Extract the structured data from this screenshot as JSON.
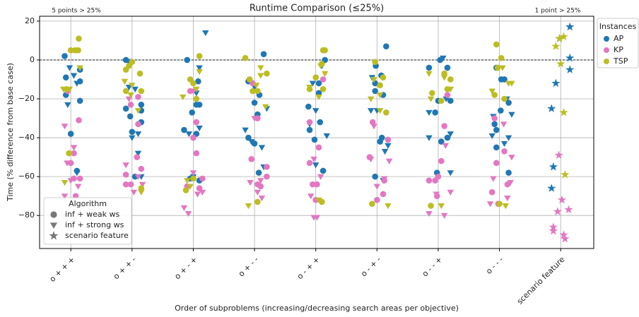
{
  "chart_data": {
    "type": "scatter",
    "title": "Runtime Comparison (≤25%)",
    "x_label": "Order of subproblems (increasing/decreasing search areas per objective)",
    "y_label": "Time (% difference from base case)",
    "annotations": [
      "5 points > 25%",
      "1 point > 25%"
    ],
    "reference_line": 0,
    "xlim": [
      -0.51,
      8.54
    ],
    "ylim": [
      -97,
      22.5
    ],
    "xticks": [
      {
        "value": 0,
        "label": "o + + +"
      },
      {
        "value": 1,
        "label": "o + + -"
      },
      {
        "value": 2,
        "label": "o + - +"
      },
      {
        "value": 3,
        "label": "o + - -"
      },
      {
        "value": 4,
        "label": "o - + +"
      },
      {
        "value": 5,
        "label": "o - + -"
      },
      {
        "value": 6,
        "label": "o - - +"
      },
      {
        "value": 7,
        "label": "o - - -"
      },
      {
        "value": 8,
        "label": "scenario feature"
      }
    ],
    "yticks": [
      {
        "value": -80,
        "label": "−80"
      },
      {
        "value": -60,
        "label": "−60"
      },
      {
        "value": -40,
        "label": "−40"
      },
      {
        "value": -20,
        "label": "−20"
      },
      0,
      20
    ],
    "grid": true,
    "legend": {
      "title": "Instances",
      "position": "outside right"
    },
    "algorithm_legend": {
      "title": "Algorithm",
      "position": "lower left",
      "color": "#777777",
      "entries": [
        {
          "name": "inf + weak ws",
          "marker": "circle"
        },
        {
          "name": "inf + strong ws",
          "marker": "triangle_down"
        },
        {
          "name": "scenario feature",
          "marker": "star"
        }
      ]
    },
    "series": [
      {
        "name": "AP",
        "color": "#1f77b4",
        "groups": [
          {
            "marker": "circle",
            "x": [
              -0.1,
              -0.08,
              -0.08,
              0.15,
              0.15,
              0.15,
              0.1,
              0.0,
              0.9,
              0.97,
              0.9,
              1.0,
              1.15,
              1.15,
              1.15,
              0.97,
              1.05,
              1.9,
              1.98,
              2.05,
              2.1,
              2.08,
              2.05,
              1.85,
              2.1,
              1.95,
              3.15,
              2.9,
              3.0,
              3.05,
              3.08,
              3.0,
              3.07,
              2.9,
              4.15,
              4.05,
              4.05,
              3.88,
              3.9,
              3.98,
              4.07,
              4.12,
              5.15,
              4.98,
              5.07,
              4.97,
              4.97,
              5.1,
              5.08,
              4.97,
              5.05,
              6.03,
              5.85,
              5.95,
              6.0,
              6.15,
              6.2,
              6.15,
              6.05,
              5.98,
              6.95,
              7.03,
              7.02,
              6.92,
              6.95,
              7.15,
              7.15,
              6.95,
              7.08
            ],
            "values": [
              2,
              -9,
              -18,
              -5,
              -11,
              -21,
              -57,
              -38,
              0,
              -1,
              -25,
              -37,
              -23,
              -26,
              -32,
              -29,
              -60,
              0,
              -27,
              -23,
              -23,
              -11,
              -38,
              -36,
              -62,
              -61,
              3,
              -11,
              -22,
              -28,
              -18,
              -43,
              -58,
              -40,
              0,
              -12,
              -17,
              -24,
              -36,
              -41,
              -32,
              -57,
              7,
              -3,
              -8,
              -12,
              -16,
              -18,
              -40,
              -60,
              -42,
              0,
              -4,
              -27,
              -21,
              -4,
              -21,
              -40,
              -42,
              -58,
              -4,
              -10,
              -26,
              -33,
              -36,
              -22,
              -58,
              -45,
              -10
            ]
          },
          {
            "marker": "triangle_down",
            "x": [
              -0.02,
              0.05,
              0.1,
              -0.05,
              0.1,
              0.95,
              1.0,
              1.1,
              1.1,
              1.15,
              1.05,
              2.2,
              2.1,
              2.05,
              1.93,
              2.0,
              2.1,
              2.85,
              2.95,
              3.12,
              3.2,
              3.15,
              3.0,
              3.95,
              4.0,
              4.1,
              4.18,
              4.0,
              3.9,
              4.9,
              5.0,
              5.13,
              5.18,
              5.1,
              4.92,
              6.08,
              5.85,
              5.85,
              6.13,
              6.2,
              6.2,
              6.88,
              6.9,
              7.12,
              7.15,
              7.2,
              7.08
            ],
            "values": [
              -4,
              -8,
              -12,
              -23,
              -58,
              -14,
              -40,
              -38,
              -48,
              -60,
              -15,
              14,
              -4,
              -17,
              -38,
              -60,
              -35,
              -36,
              -42,
              -45,
              -25,
              -55,
              -14,
              -12,
              -26,
              -3,
              -39,
              -54,
              -33,
              -26,
              -26,
              -47,
              -44,
              -62,
              -9,
              1,
              -40,
              -27,
              -20,
              -38,
              -58,
              -39,
              -29,
              -20,
              -40,
              -28,
              -43
            ]
          },
          {
            "marker": "star",
            "x": [
              8.15,
              7.98,
              8.15,
              8.15,
              7.92,
              7.85,
              7.88,
              7.85
            ],
            "values": [
              17,
              11,
              1,
              -5,
              -12,
              -25,
              -55,
              -66
            ]
          }
        ]
      },
      {
        "name": "KP",
        "color": "#e377c2",
        "groups": [
          {
            "marker": "circle",
            "x": [
              0.05,
              0.05,
              0.08,
              0.15,
              0.13,
              -0.05,
              0.0,
              0.9,
              0.9,
              0.98,
              1.08,
              1.15,
              1.1,
              1.1,
              0.98,
              1.95,
              2.05,
              2.05,
              2.1,
              2.15,
              1.9,
              2.0,
              2.97,
              3.05,
              2.95,
              3.05,
              3.1,
              3.2,
              3.2,
              3.9,
              3.9,
              4.02,
              4.05,
              4.12,
              3.95,
              4.0,
              4.88,
              4.93,
              5.12,
              5.1,
              5.18,
              5.0,
              5.95,
              6.0,
              6.05,
              6.1,
              6.15,
              5.98,
              5.85,
              6.88,
              7.08,
              6.98,
              6.95,
              7.13,
              6.92
            ],
            "values": [
              -48,
              -61,
              -70,
              -61,
              -31,
              -16,
              -53,
              -59,
              -64,
              -64,
              -50,
              -56,
              -33,
              -19,
              -23,
              -16,
              -32,
              -48,
              -66,
              -61,
              -65,
              -40,
              -12,
              -30,
              -51,
              -64,
              -65,
              -60,
              -55,
              -32,
              -53,
              -64,
              -45,
              -10,
              -64,
              -72,
              -50,
              -32,
              -62,
              -69,
              -41,
              -72,
              -62,
              -60,
              -52,
              -34,
              -18,
              -70,
              -62,
              -68,
              -47,
              -74,
              -53,
              -64,
              -30
            ]
          },
          {
            "marker": "triangle_down",
            "x": [
              -0.1,
              -0.06,
              -0.1,
              0.05,
              0.12,
              0.0,
              0.9,
              0.95,
              1.03,
              1.17,
              1.1,
              1.85,
              1.92,
              2.0,
              2.07,
              2.15,
              2.0,
              2.93,
              3.05,
              3.12,
              3.0,
              3.1,
              3.97,
              4.02,
              3.92,
              4.08,
              3.97,
              4.9,
              4.95,
              5.12,
              5.2,
              5.0,
              5.85,
              5.97,
              6.1,
              6.2,
              6.12,
              6.85,
              7.07,
              7.18,
              7.2,
              6.9,
              7.13
            ],
            "values": [
              -34,
              -53,
              -70,
              -45,
              -65,
              -62,
              -54,
              -20,
              -68,
              -64,
              -60,
              -76,
              -79,
              -58,
              -69,
              -68,
              -16,
              -63,
              -68,
              -71,
              -30,
              -62,
              -81,
              -81,
              -70,
              -60,
              -51,
              -51,
              -34,
              -61,
              -52,
              -65,
              -79,
              -69,
              -80,
              -68,
              -44,
              -74,
              -33,
              -63,
              -50,
              -61,
              -71
            ]
          },
          {
            "marker": "star",
            "x": [
              7.97,
              8.02,
              7.95,
              7.88,
              7.88,
              8.05,
              8.07,
              8.13
            ],
            "values": [
              -49,
              -72,
              -78,
              -86,
              -88,
              -90,
              -92,
              -77
            ]
          }
        ]
      },
      {
        "name": "TSP",
        "color": "#bcbd22",
        "groups": [
          {
            "marker": "circle",
            "x": [
              0.0,
              0.07,
              0.13,
              0.12,
              -0.07,
              -0.03,
              0.9,
              0.9,
              0.95,
              1.13,
              1.15,
              1.15,
              1.0,
              2.1,
              1.95,
              2.05,
              2.0,
              1.88,
              2.0,
              2.85,
              2.92,
              2.97,
              3.05,
              3.2,
              3.05,
              4.12,
              4.15,
              4.0,
              3.9,
              4.12,
              4.1,
              4.1,
              4.97,
              5.1,
              5.05,
              4.92,
              5.15,
              5.9,
              6.1,
              6.2,
              6.15,
              5.88,
              6.05,
              6.95,
              7.03,
              6.97,
              7.08,
              6.92,
              7.0
            ],
            "values": [
              5,
              5,
              11,
              5,
              -15,
              -48,
              -5,
              -16,
              -3,
              -7,
              -16,
              -66,
              -1,
              2,
              -10,
              -20,
              -12,
              -67,
              -61,
              1,
              -10,
              -16,
              -16,
              -7,
              -73,
              5,
              5,
              -9,
              -15,
              -15,
              -73,
              -2,
              -1,
              -9,
              -13,
              -74,
              -27,
              -17,
              -7,
              -10,
              -15,
              -75,
              -21,
              8,
              1,
              -4,
              -20,
              -18,
              -74
            ]
          },
          {
            "marker": "triangle_down",
            "x": [
              -0.1,
              -0.02,
              0.15,
              -0.12,
              0.88,
              0.98,
              1.1,
              1.15,
              1.0,
              1.83,
              2.1,
              1.95,
              2.05,
              1.9,
              2.9,
              3.1,
              3.1,
              3.18,
              3.03,
              4.05,
              4.15,
              3.9,
              4.08,
              4.05,
              4.9,
              5.05,
              5.18,
              5.05,
              4.95,
              5.88,
              6.05,
              6.1,
              6.2,
              5.85,
              6.88,
              7.05,
              7.15,
              7.2,
              7.1
            ],
            "values": [
              -63,
              -15,
              -4,
              -15,
              -11,
              -18,
              -26,
              -68,
              -13,
              -19,
              -6,
              -65,
              -15,
              -62,
              -75,
              -4,
              -8,
              -24,
              -13,
              -72,
              -7,
              -14,
              -3,
              -19,
              -20,
              -18,
              -75,
              -26,
              -10,
              -20,
              -75,
              -9,
              -15,
              -7,
              -16,
              -4,
              -12,
              -12,
              -75
            ]
          },
          {
            "marker": "star",
            "x": [
              7.92,
              7.98,
              8.05,
              8.0,
              8.05,
              8.07
            ],
            "values": [
              7,
              11,
              12,
              -2,
              -27,
              -59
            ]
          }
        ]
      }
    ]
  }
}
